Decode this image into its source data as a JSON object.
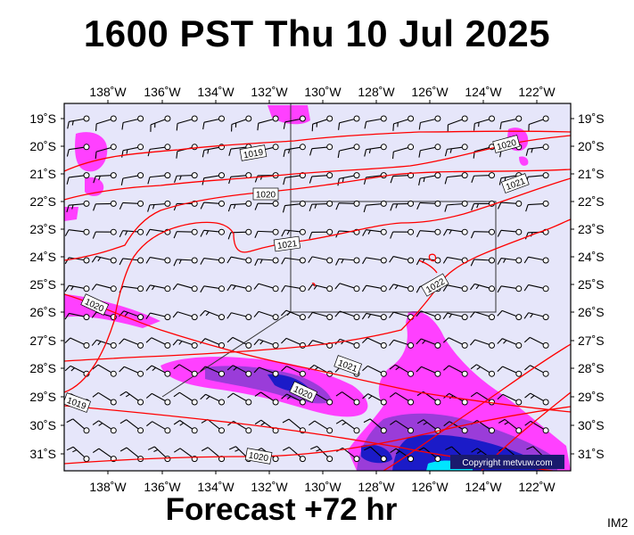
{
  "header": {
    "title": "1600 PST Thu 10 Jul 2025"
  },
  "footer": {
    "forecast": "Forecast +72 hr",
    "panel_id": "IM2"
  },
  "copyright": "Copyright metvuw.com",
  "colors": {
    "background": "#e6e6fa",
    "isobar": "#ff0000",
    "rain_light": "#ff40ff",
    "rain_medium": "#9a3cd9",
    "rain_heavy": "#1b1bc8",
    "rain_extreme": "#00e5ff"
  },
  "map": {
    "lon_labels": [
      "138˚W",
      "136˚W",
      "134˚W",
      "132˚W",
      "130˚W",
      "128˚W",
      "126˚W",
      "124˚W",
      "122˚W"
    ],
    "lat_labels": [
      "19˚S",
      "20˚S",
      "21˚S",
      "22˚S",
      "23˚S",
      "24˚S",
      "25˚S",
      "26˚S",
      "27˚S",
      "28˚S",
      "29˚S",
      "30˚S",
      "31˚S"
    ],
    "isobars": [
      {
        "value": "1019",
        "labels": [
          "1019",
          "1019"
        ]
      },
      {
        "value": "1020",
        "labels": [
          "1020",
          "1020",
          "1020",
          "1020",
          "1020"
        ]
      },
      {
        "value": "1021",
        "labels": [
          "1021",
          "1021",
          "1021"
        ]
      },
      {
        "value": "1022",
        "labels": [
          "1022"
        ]
      }
    ]
  }
}
